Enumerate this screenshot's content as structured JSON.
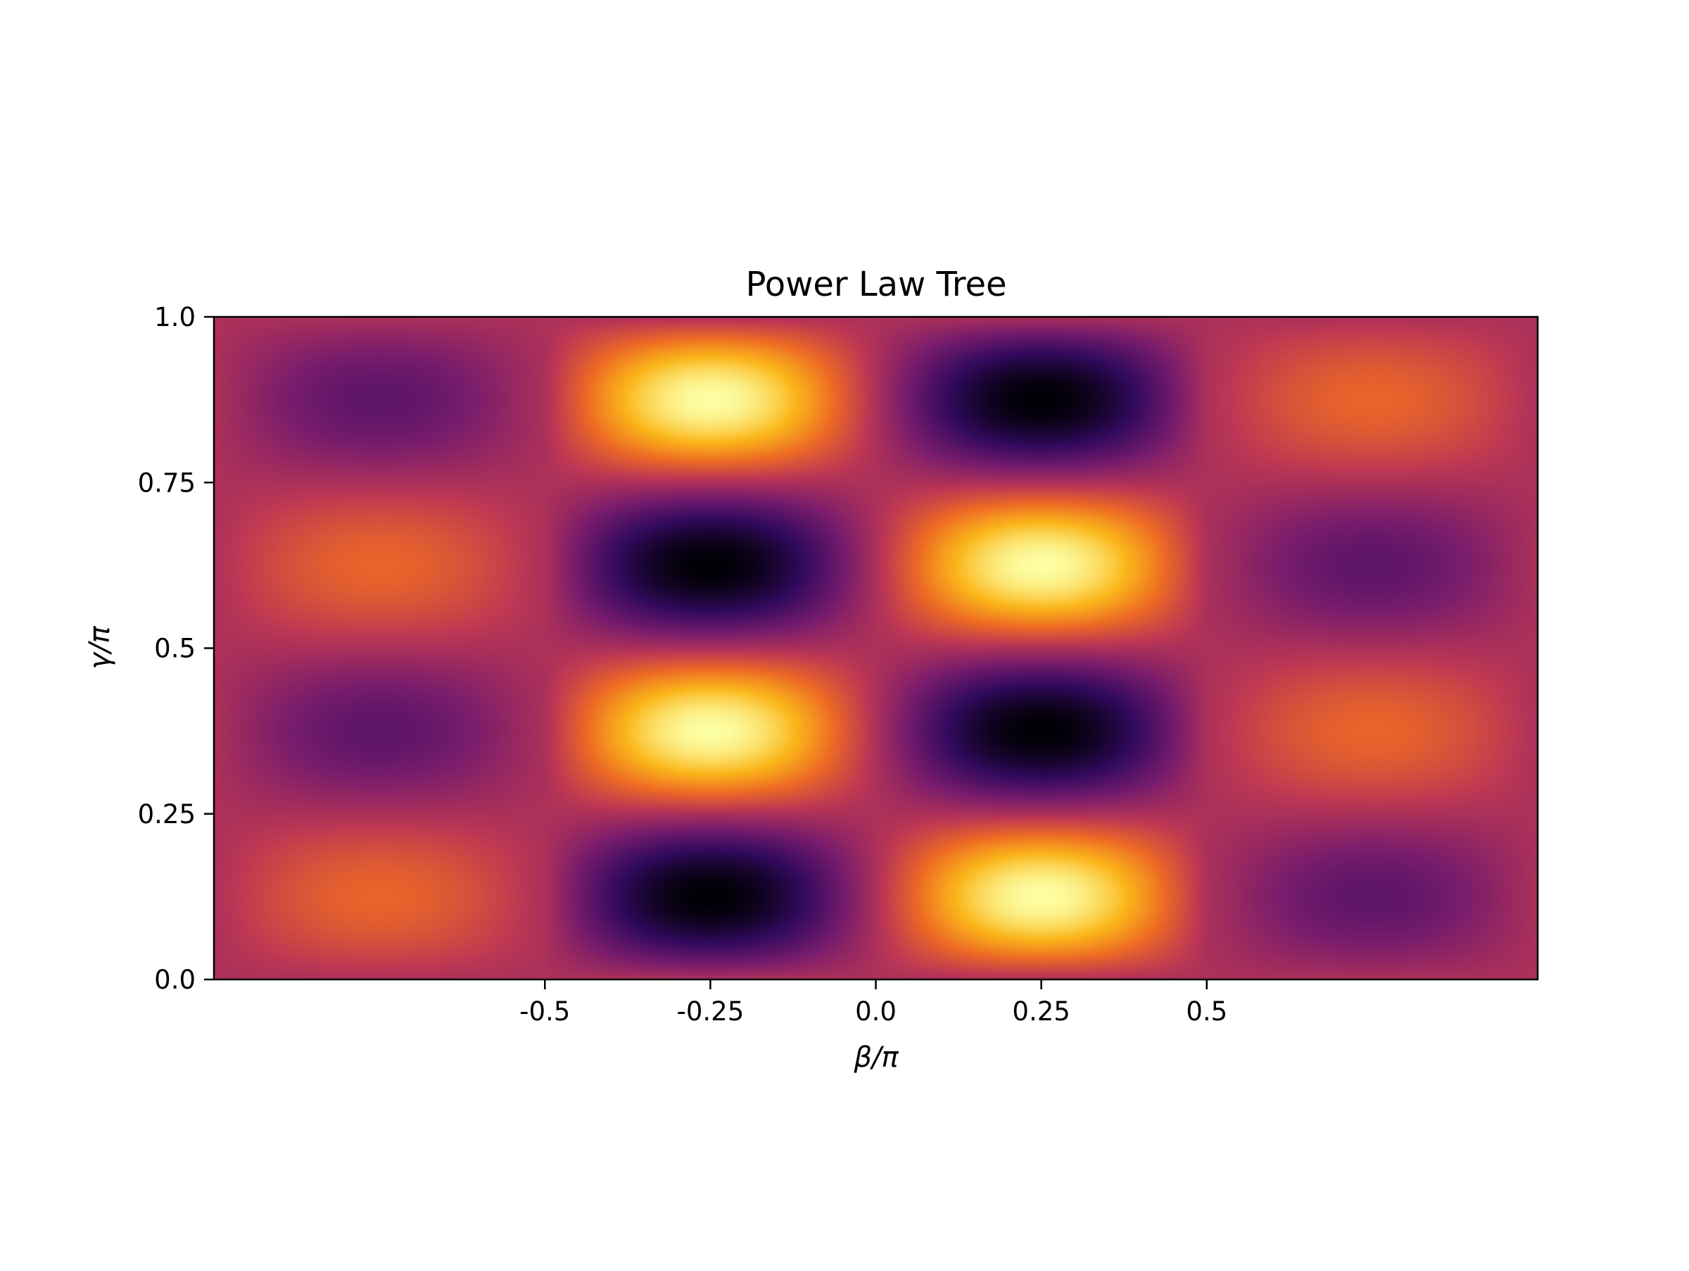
{
  "chart_data": {
    "type": "heatmap",
    "title": "Power Law Tree",
    "xlabel": "β/π",
    "ylabel": "γ/π",
    "xlim": [
      -1.0,
      1.0
    ],
    "ylim": [
      0.0,
      1.0
    ],
    "x_ticks": [
      {
        "value": -0.5,
        "label": "-0.5"
      },
      {
        "value": -0.25,
        "label": "-0.25"
      },
      {
        "value": 0.0,
        "label": "0.0"
      },
      {
        "value": 0.25,
        "label": "0.25"
      },
      {
        "value": 0.5,
        "label": "0.5"
      }
    ],
    "y_ticks": [
      {
        "value": 0.0,
        "label": "0.0"
      },
      {
        "value": 0.25,
        "label": "0.25"
      },
      {
        "value": 0.5,
        "label": "0.5"
      },
      {
        "value": 0.75,
        "label": "0.75"
      },
      {
        "value": 1.0,
        "label": "1.0"
      }
    ],
    "colormap": "inferno",
    "colormap_stops": [
      "#000004",
      "#320a5e",
      "#781c6d",
      "#bc3754",
      "#ed6925",
      "#fbb61a",
      "#fcffa4"
    ],
    "grid": false,
    "legend": "none",
    "field_peaks": [
      {
        "x": -0.75,
        "y": 0.125,
        "value": 0.65
      },
      {
        "x": -0.75,
        "y": 0.375,
        "value": 0.27
      },
      {
        "x": -0.75,
        "y": 0.625,
        "value": 0.65
      },
      {
        "x": -0.75,
        "y": 0.875,
        "value": 0.27
      },
      {
        "x": -0.25,
        "y": 0.125,
        "value": 0.0
      },
      {
        "x": -0.25,
        "y": 0.375,
        "value": 1.0
      },
      {
        "x": -0.25,
        "y": 0.625,
        "value": 0.0
      },
      {
        "x": -0.25,
        "y": 0.875,
        "value": 1.0
      },
      {
        "x": 0.25,
        "y": 0.125,
        "value": 1.0
      },
      {
        "x": 0.25,
        "y": 0.375,
        "value": 0.0
      },
      {
        "x": 0.25,
        "y": 0.625,
        "value": 1.0
      },
      {
        "x": 0.25,
        "y": 0.875,
        "value": 0.0
      },
      {
        "x": 0.75,
        "y": 0.125,
        "value": 0.27
      },
      {
        "x": 0.75,
        "y": 0.375,
        "value": 0.65
      },
      {
        "x": 0.75,
        "y": 0.625,
        "value": 0.27
      },
      {
        "x": 0.75,
        "y": 0.875,
        "value": 0.65
      }
    ],
    "background_value": 0.46
  }
}
